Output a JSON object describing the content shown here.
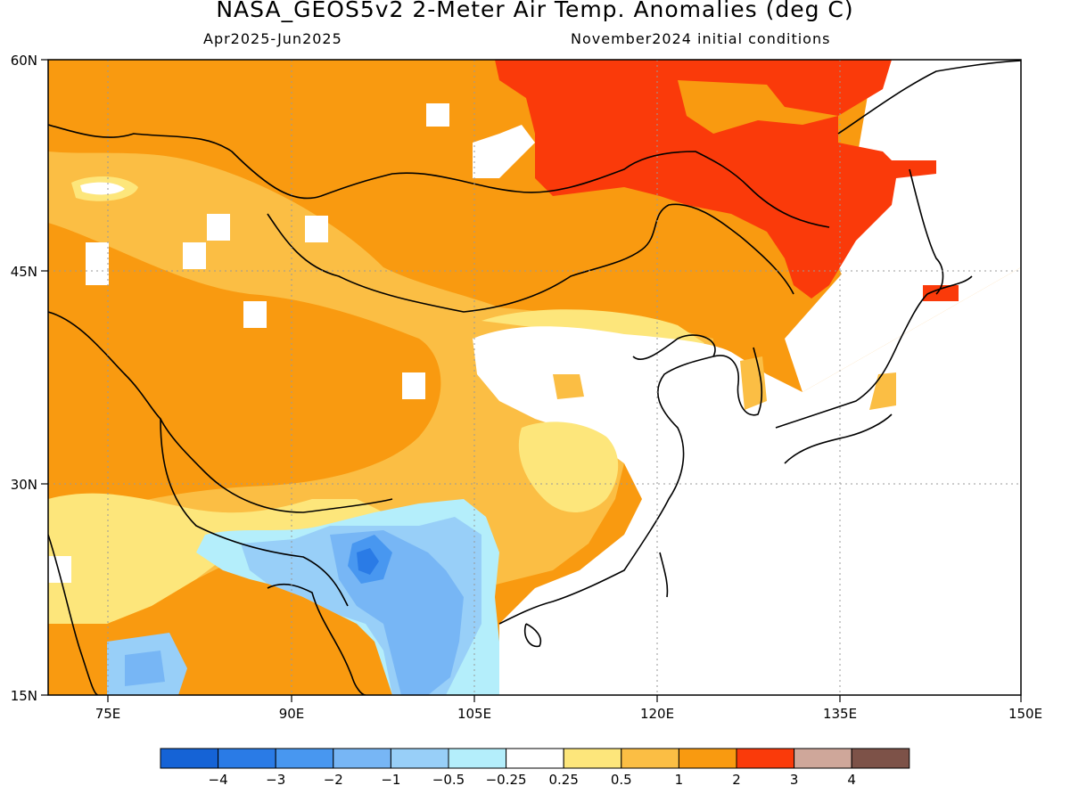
{
  "title": "NASA_GEOS5v2 2-Meter Air Temp. Anomalies (deg C)",
  "subtitle_left": "Apr2025-Jun2025",
  "subtitle_right": "November2024 initial conditions",
  "axes": {
    "lat_labels": [
      "60N",
      "45N",
      "30N",
      "15N"
    ],
    "lon_labels": [
      "75E",
      "90E",
      "105E",
      "120E",
      "135E",
      "150E"
    ]
  },
  "map_extent": {
    "lon_min": 70,
    "lon_max": 150,
    "lat_min": 15,
    "lat_max": 60
  },
  "colorbar": {
    "labels": [
      "-4",
      "-3",
      "-2",
      "-1",
      "-0.5",
      "-0.25",
      "0.25",
      "0.5",
      "1",
      "2",
      "3",
      "4"
    ],
    "colors": [
      "#1563d6",
      "#2a7be6",
      "#4897f0",
      "#77b6f5",
      "#98cff8",
      "#b4eefb",
      "#ffffff",
      "#fde67b",
      "#fbbe44",
      "#f99a10",
      "#fa3a0a",
      "#cfa79a",
      "#7d5248"
    ]
  }
}
